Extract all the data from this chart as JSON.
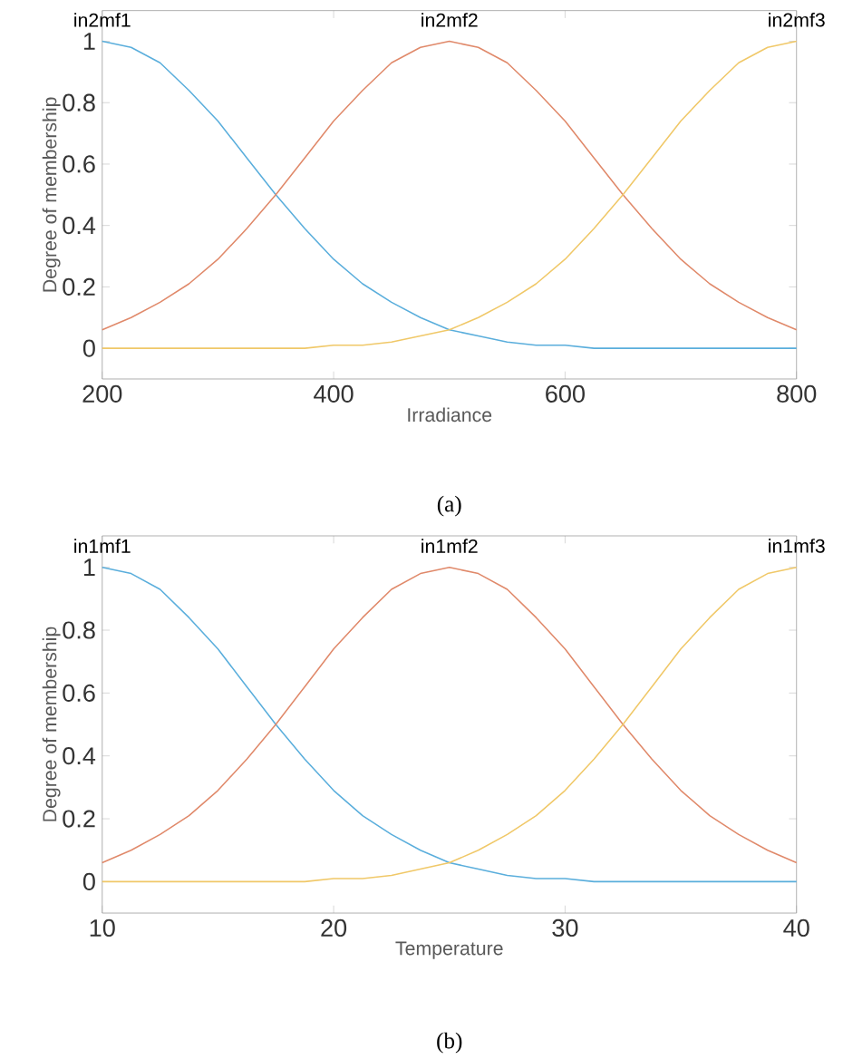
{
  "chart_data": [
    {
      "type": "line",
      "xlabel": "Irradiance",
      "ylabel": "Degree of membership",
      "x": [
        200,
        225,
        250,
        275,
        300,
        325,
        350,
        375,
        400,
        425,
        450,
        475,
        500,
        525,
        550,
        575,
        600,
        625,
        650,
        675,
        700,
        725,
        750,
        775,
        800
      ],
      "series": [
        {
          "color": "#5aaedc",
          "values": [
            1,
            0.98,
            0.93,
            0.84,
            0.74,
            0.62,
            0.5,
            0.39,
            0.29,
            0.21,
            0.15,
            0.1,
            0.06,
            0.04,
            0.02,
            0.01,
            0.01,
            0,
            0,
            0,
            0,
            0,
            0,
            0,
            0
          ]
        },
        {
          "color": "#e0896a",
          "values": [
            0.06,
            0.1,
            0.15,
            0.21,
            0.29,
            0.39,
            0.5,
            0.62,
            0.74,
            0.84,
            0.93,
            0.98,
            1,
            0.98,
            0.93,
            0.84,
            0.74,
            0.62,
            0.5,
            0.39,
            0.29,
            0.21,
            0.15,
            0.1,
            0.06
          ]
        },
        {
          "color": "#f0c868",
          "values": [
            0,
            0,
            0,
            0,
            0,
            0,
            0,
            0,
            0.01,
            0.01,
            0.02,
            0.04,
            0.06,
            0.1,
            0.15,
            0.21,
            0.29,
            0.39,
            0.5,
            0.62,
            0.74,
            0.84,
            0.93,
            0.98,
            1
          ]
        }
      ],
      "xlim": [
        200,
        800
      ],
      "xticks": [
        200,
        400,
        600,
        800
      ],
      "ylim": [
        -0.1,
        1.1
      ],
      "yticks": [
        0,
        0.2,
        0.4,
        0.6,
        0.8,
        1
      ],
      "annotations": [
        {
          "text": "in2mf1",
          "x": 200,
          "y": 1
        },
        {
          "text": "in2mf2",
          "x": 500,
          "y": 1
        },
        {
          "text": "in2mf3",
          "x": 800,
          "y": 1
        },
        "(a)"
      ]
    },
    {
      "type": "line",
      "xlabel": "Temperature",
      "ylabel": "Degree of membership",
      "x": [
        10,
        11.25,
        12.5,
        13.75,
        15,
        16.25,
        17.5,
        18.75,
        20,
        21.25,
        22.5,
        23.75,
        25,
        26.25,
        27.5,
        28.75,
        30,
        31.25,
        32.5,
        33.75,
        35,
        36.25,
        37.5,
        38.75,
        40
      ],
      "series": [
        {
          "color": "#5aaedc",
          "values": [
            1,
            0.98,
            0.93,
            0.84,
            0.74,
            0.62,
            0.5,
            0.39,
            0.29,
            0.21,
            0.15,
            0.1,
            0.06,
            0.04,
            0.02,
            0.01,
            0.01,
            0,
            0,
            0,
            0,
            0,
            0,
            0,
            0
          ]
        },
        {
          "color": "#e0896a",
          "values": [
            0.06,
            0.1,
            0.15,
            0.21,
            0.29,
            0.39,
            0.5,
            0.62,
            0.74,
            0.84,
            0.93,
            0.98,
            1,
            0.98,
            0.93,
            0.84,
            0.74,
            0.62,
            0.5,
            0.39,
            0.29,
            0.21,
            0.15,
            0.1,
            0.06
          ]
        },
        {
          "color": "#f0c868",
          "values": [
            0,
            0,
            0,
            0,
            0,
            0,
            0,
            0,
            0.01,
            0.01,
            0.02,
            0.04,
            0.06,
            0.1,
            0.15,
            0.21,
            0.29,
            0.39,
            0.5,
            0.62,
            0.74,
            0.84,
            0.93,
            0.98,
            1
          ]
        }
      ],
      "xlim": [
        10,
        40
      ],
      "xticks": [
        10,
        20,
        30,
        40
      ],
      "ylim": [
        -0.1,
        1.1
      ],
      "yticks": [
        0,
        0.2,
        0.4,
        0.6,
        0.8,
        1
      ],
      "annotations": [
        {
          "text": "in1mf1",
          "x": 10,
          "y": 1
        },
        {
          "text": "in1mf2",
          "x": 25,
          "y": 1
        },
        {
          "text": "in1mf3",
          "x": 40,
          "y": 1
        },
        "(b)"
      ]
    }
  ]
}
